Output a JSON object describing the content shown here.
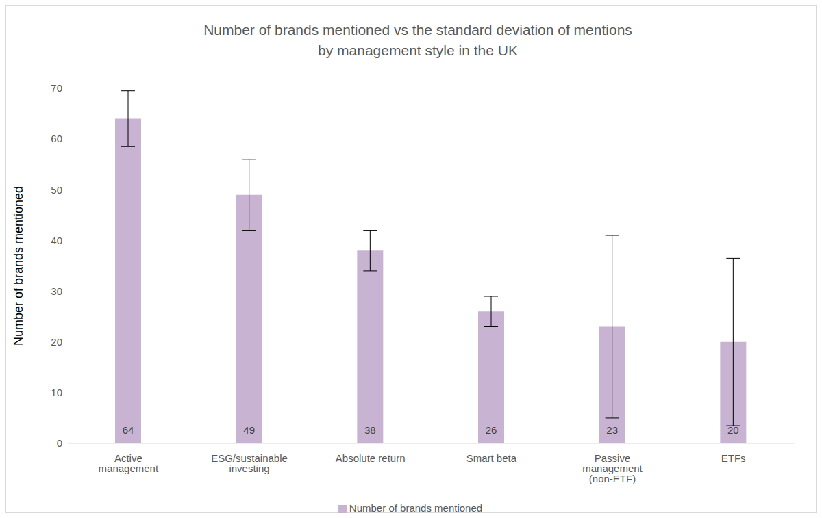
{
  "chart_data": {
    "type": "bar",
    "title": "Number of brands mentioned vs the standard deviation of mentions\nby management style in the UK",
    "y_label": "Number of brands mentioned",
    "categories": [
      "Active management",
      "ESG/sustainable investing",
      "Absolute return",
      "Smart beta",
      "Passive management (non-ETF)",
      "ETFs"
    ],
    "series": [
      {
        "name": "Number of brands mentioned",
        "color": "#c8b4d2",
        "values": [
          64,
          49,
          38,
          26,
          23,
          20
        ],
        "errors": [
          5.5,
          7,
          4,
          3,
          18,
          16.5
        ]
      }
    ],
    "ylim": [
      0,
      70
    ],
    "yticks": [
      0,
      10,
      20,
      30,
      40,
      50,
      60,
      70
    ],
    "grid": false,
    "legend": "bottom",
    "data_labels": true
  }
}
